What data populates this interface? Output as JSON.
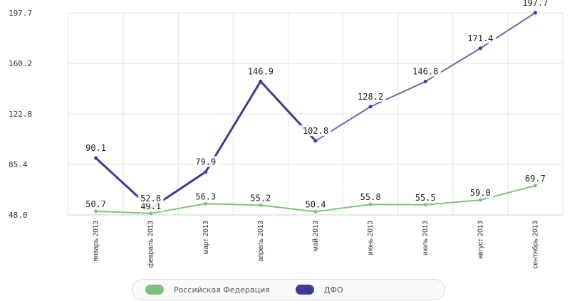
{
  "chart_data": {
    "type": "line",
    "categories": [
      "январь 2013",
      "февраль 2013",
      "март 2013",
      "апрель 2013",
      "май 2013",
      "июнь 2013",
      "июль 2013",
      "август 2013",
      "сентябрь 2013"
    ],
    "series": [
      {
        "name": "Российская Федерация",
        "color": "#7cc47a",
        "values": [
          50.7,
          49.1,
          56.3,
          55.2,
          50.4,
          55.8,
          55.5,
          59.0,
          69.7
        ],
        "labels": [
          "50.7",
          "49.1",
          "56.3",
          "55.2",
          "50.4",
          "55.8",
          "55.5",
          "59.0",
          "69.7"
        ]
      },
      {
        "name": "ДФО",
        "color": "#3a3a9a",
        "values": [
          90.1,
          52.8,
          79.9,
          146.9,
          102.8,
          128.2,
          146.8,
          171.4,
          197.7
        ],
        "labels": [
          "90.1",
          "52.8",
          "79.9",
          "146.9",
          "102.8",
          "128.2",
          "146.8",
          "171.4",
          "197.7"
        ]
      }
    ],
    "yticks": [
      "48.0",
      "85.4",
      "122.8",
      "160.2",
      "197.7"
    ],
    "ylim": [
      48.0,
      197.7
    ],
    "grid": true,
    "legend_position": "bottom"
  }
}
